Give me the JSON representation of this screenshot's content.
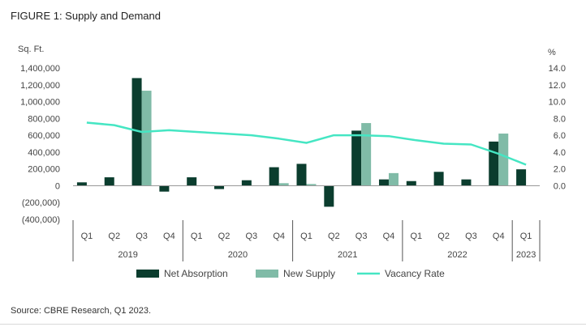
{
  "figure_title": "FIGURE 1: Supply and Demand",
  "source": "Source: CBRE Research, Q1 2023.",
  "colors": {
    "net_absorption": "#0b3d2e",
    "new_supply": "#80bba7",
    "vacancy_rate": "#45e6c3",
    "axis": "#555555",
    "text": "#444444"
  },
  "chart_data": {
    "type": "bar",
    "title": "FIGURE 1: Supply and Demand",
    "ylabel": "Sq. Ft.",
    "y2label": "%",
    "ylim": [
      -400000,
      1400000
    ],
    "y2lim": [
      0,
      14
    ],
    "y_ticks": [
      "1,400,000",
      "1,200,000",
      "1,000,000",
      "800,000",
      "600,000",
      "400,000",
      "200,000",
      "0",
      "(200,000)",
      "(400,000)"
    ],
    "y2_ticks": [
      "14.0",
      "12.0",
      "10.0",
      "8.0",
      "6.0",
      "4.0",
      "2.0",
      "0.0"
    ],
    "categories": [
      "Q1",
      "Q2",
      "Q3",
      "Q4",
      "Q1",
      "Q2",
      "Q3",
      "Q4",
      "Q1",
      "Q2",
      "Q3",
      "Q4",
      "Q1",
      "Q2",
      "Q3",
      "Q4",
      "Q1"
    ],
    "year_groups": [
      {
        "label": "2019",
        "count": 4
      },
      {
        "label": "2020",
        "count": 4
      },
      {
        "label": "2021",
        "count": 4
      },
      {
        "label": "2022",
        "count": 4
      },
      {
        "label": "2023",
        "count": 1
      }
    ],
    "series": [
      {
        "name": "Net Absorption",
        "kind": "bar",
        "values": [
          40000,
          100000,
          1280000,
          -70000,
          100000,
          -40000,
          65000,
          220000,
          260000,
          -250000,
          655000,
          75000,
          55000,
          165000,
          75000,
          525000,
          195000
        ]
      },
      {
        "name": "New Supply",
        "kind": "bar",
        "values": [
          0,
          0,
          1130000,
          0,
          0,
          0,
          0,
          30000,
          20000,
          0,
          745000,
          150000,
          0,
          0,
          0,
          620000,
          0
        ]
      },
      {
        "name": "Vacancy Rate",
        "kind": "line",
        "axis": "right",
        "values": [
          7.5,
          7.2,
          6.4,
          6.6,
          6.4,
          6.2,
          6.0,
          5.6,
          5.1,
          6.0,
          6.0,
          5.9,
          5.4,
          5.0,
          4.9,
          3.8,
          2.5
        ]
      }
    ],
    "legend_position": "bottom",
    "grid": false
  }
}
